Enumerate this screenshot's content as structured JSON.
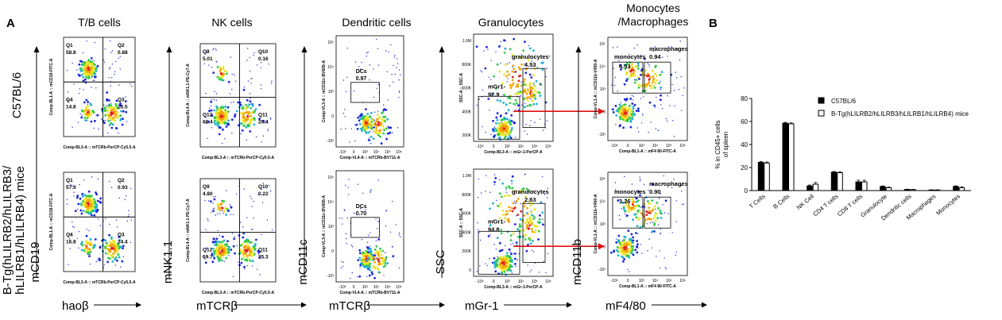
{
  "panel_label_a": "A",
  "panel_label_b": "B",
  "col_titles": [
    "T/B cells",
    "NK cells",
    "Dendritic cells",
    "Granulocytes",
    "Monocytes\n/Macrophages"
  ],
  "row_labels": [
    "C57BL/6",
    "B-Tg(hLILRB2/hLILRB3/\nhLILRB1/hLILRB4) mice"
  ],
  "y_axis_titles": [
    "mCD19",
    "mNK1.1",
    "mCD11c",
    "SSC",
    "mCD11b"
  ],
  "x_axis_titles": [
    "haoβ",
    "mTCRβ",
    "mTCRβ",
    "mGr-1",
    "mF4/80"
  ],
  "flow_plots": [
    {
      "col": 0,
      "row": 0,
      "ylab": "Comp-BL1-A :: mCD19-FITC-A",
      "xlab": "Comp-BL3-A :: mTCRb-PerCP-Cy5.5-A",
      "quadrants": [
        {
          "name": "Q1",
          "value": "58.8"
        },
        {
          "name": "Q2",
          "value": "0.88"
        },
        {
          "name": "Q4",
          "value": "14.8"
        },
        {
          "name": "Q3",
          "value": "25.5"
        }
      ]
    },
    {
      "col": 1,
      "row": 0,
      "ylab": "Comp-BL4-A :: mNK1.1-PE-Cy7-A",
      "xlab": "Comp-BL3-A :: mTCRb-PerCP-Cy5.5-A",
      "quadrants": [
        {
          "name": "Q9",
          "value": "5.01"
        },
        {
          "name": "Q10",
          "value": "0.16"
        },
        {
          "name": "Q12",
          "value": "68.4"
        },
        {
          "name": "Q11",
          "value": "26.4"
        }
      ]
    },
    {
      "col": 2,
      "row": 0,
      "ylab": "Comp-VL3-A :: mCD11c-BV605-A",
      "xlab": "Comp-VL4-A :: mTCRb-BV711-A",
      "gate": {
        "name": "DCs",
        "value": "0.97"
      }
    },
    {
      "col": 3,
      "row": 0,
      "ylab": "SSC-A :: SSC-A",
      "xlab": "Comp-BL3-A :: mGr-1-PerCP-A",
      "gates": [
        {
          "name": "granulocytes",
          "value": "4.53"
        },
        {
          "name": "mGr1-",
          "value": "92.9"
        }
      ]
    },
    {
      "col": 4,
      "row": 0,
      "ylab": "Comp-VL1-A :: mCD11b-V450-A",
      "xlab": "Comp-BL1-A :: mF4 80-FITC-A",
      "gates": [
        {
          "name": "monocytes",
          "value": "4.53"
        },
        {
          "name": "macrophages",
          "value": "0.94"
        }
      ]
    },
    {
      "col": 0,
      "row": 1,
      "ylab": "Comp-BL1-A :: mCD19-FITC-A",
      "xlab": "Comp-BL3-A :: mTCRb-PerCP-Cy5.5-A",
      "quadrants": [
        {
          "name": "Q1",
          "value": "57.9"
        },
        {
          "name": "Q2",
          "value": "0.93"
        },
        {
          "name": "Q4",
          "value": "16.8"
        },
        {
          "name": "Q3",
          "value": "24.4"
        }
      ]
    },
    {
      "col": 1,
      "row": 1,
      "ylab": "Comp-BL4-A :: mNK1.1-PE-Cy7-A",
      "xlab": "Comp-BL3-A :: mTCRb-PerCP-Cy5.5-A",
      "quadrants": [
        {
          "name": "Q9",
          "value": "4.80"
        },
        {
          "name": "Q10",
          "value": "0.22"
        },
        {
          "name": "Q12",
          "value": "69.7"
        },
        {
          "name": "Q11",
          "value": "25.3"
        }
      ]
    },
    {
      "col": 2,
      "row": 1,
      "ylab": "Comp-VL3-A :: mCD11c-BV605-A",
      "xlab": "Comp-VL4-A :: mTCRb-BV711-A",
      "gate": {
        "name": "DCs",
        "value": "0.70"
      }
    },
    {
      "col": 3,
      "row": 1,
      "ylab": "SSC-A :: SSC-A",
      "xlab": "Comp-BL3-A :: mGr-1-PerCP-A",
      "gates": [
        {
          "name": "granulocytes",
          "value": "2.63"
        },
        {
          "name": "mGr1-",
          "value": "94.8"
        }
      ]
    },
    {
      "col": 4,
      "row": 1,
      "ylab": "Comp-VL1-A :: mCD11b-V450-A",
      "xlab": "Comp-BL1-A :: mF4 80-FITC-A",
      "gates": [
        {
          "name": "monocytes",
          "value": "3.26"
        },
        {
          "name": "macrophages",
          "value": "0.90"
        }
      ]
    }
  ],
  "ssc_ticks": [
    "1.0M",
    "800K",
    "600K",
    "400K",
    "200K",
    "0"
  ],
  "ssc_ticks_top": [
    "1.0M",
    "800K",
    "600K",
    "400K",
    "200K"
  ],
  "log_ticks_x": [
    "-10³",
    "0",
    "10³",
    "10⁴",
    "10⁵",
    "10⁶"
  ],
  "chart_data": {
    "type": "bar",
    "ylabel": "% in CD45+ cells\nof spleen",
    "ylim": [
      0,
      80
    ],
    "yticks": [
      0,
      20,
      40,
      60,
      80
    ],
    "categories": [
      "T Cells",
      "B Cells",
      "NK Cell",
      "CD4 T cells",
      "CD8 T cells",
      "Granulocyte",
      "Dendritic cells",
      "Macrophages",
      "Monocytes"
    ],
    "series": [
      {
        "name": "C57BL/6",
        "color": "#000000",
        "values": [
          24.5,
          58.5,
          4.0,
          16.0,
          7.5,
          3.5,
          1.0,
          0.5,
          3.5
        ],
        "errors": [
          0.8,
          0.8,
          0.8,
          0.6,
          1.5,
          0.5,
          0.2,
          0.2,
          0.6
        ]
      },
      {
        "name": "B-Tg(hLILRB2/hLILRB3/hLILRB1/hLILRB4) mice",
        "color": "#ffffff",
        "values": [
          24.0,
          58.0,
          5.5,
          15.5,
          7.5,
          2.5,
          0.8,
          0.5,
          2.5
        ],
        "errors": [
          0.8,
          0.8,
          1.5,
          0.8,
          1.5,
          0.5,
          0.2,
          0.2,
          0.8
        ]
      }
    ],
    "legend_position": "top-right"
  }
}
